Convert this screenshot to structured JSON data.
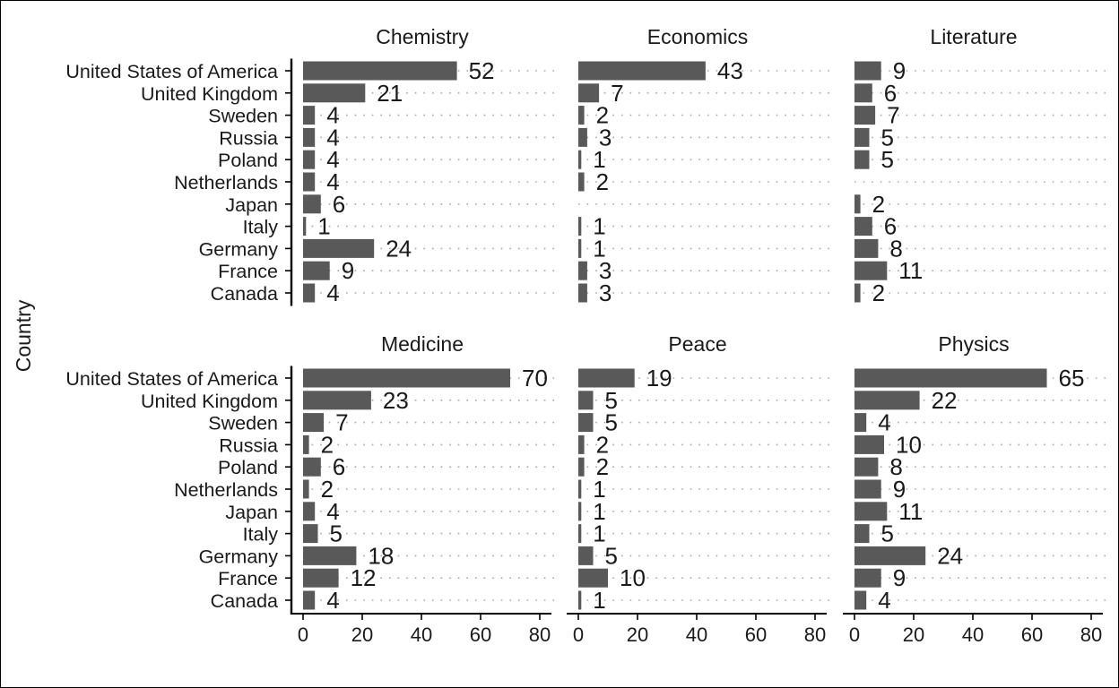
{
  "chart_data": {
    "type": "bar",
    "orientation": "horizontal",
    "ylabel": "Country",
    "xlabel": "",
    "xlim": [
      0,
      80
    ],
    "xticks": [
      0,
      20,
      40,
      60,
      80
    ],
    "grid": "dotted horizontal lines per category",
    "bar_color": "#595959",
    "categories": [
      "United States of America",
      "United Kingdom",
      "Sweden",
      "Russia",
      "Poland",
      "Netherlands",
      "Japan",
      "Italy",
      "Germany",
      "France",
      "Canada"
    ],
    "panels": [
      {
        "title": "Chemistry",
        "values": [
          52,
          21,
          4,
          4,
          4,
          4,
          6,
          1,
          24,
          9,
          4
        ]
      },
      {
        "title": "Economics",
        "values": [
          43,
          7,
          2,
          3,
          1,
          2,
          null,
          1,
          1,
          3,
          3
        ]
      },
      {
        "title": "Literature",
        "values": [
          9,
          6,
          7,
          5,
          5,
          null,
          2,
          6,
          8,
          11,
          2
        ]
      },
      {
        "title": "Medicine",
        "values": [
          70,
          23,
          7,
          2,
          6,
          2,
          4,
          5,
          18,
          12,
          4
        ]
      },
      {
        "title": "Peace",
        "values": [
          19,
          5,
          5,
          2,
          2,
          1,
          1,
          1,
          5,
          10,
          1
        ]
      },
      {
        "title": "Physics",
        "values": [
          65,
          22,
          4,
          10,
          8,
          9,
          11,
          5,
          24,
          9,
          4
        ]
      }
    ]
  }
}
